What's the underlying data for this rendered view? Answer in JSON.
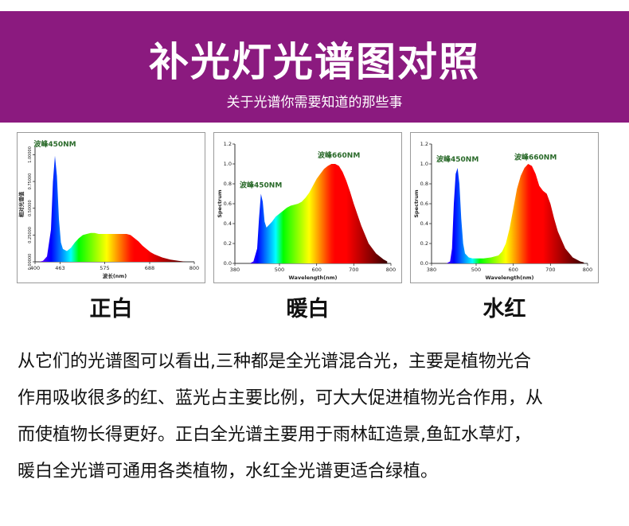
{
  "header": {
    "title": "补光灯光谱图对照",
    "subtitle": "关于光谱你需要知道的那些事",
    "background_color": "#8b1a7f"
  },
  "chart_data": [
    {
      "type": "area",
      "caption": "正白",
      "annotations": [
        "波峰450NM"
      ],
      "xlabel": "波长(nm)",
      "ylabel": "相对光谱值",
      "x_ticks": [
        "400",
        "463",
        "575",
        "688",
        "800"
      ],
      "y_ticks": [
        "0.00000",
        "0.25000",
        "0.50000",
        "0.75000",
        "1.00000"
      ],
      "xlim": [
        400,
        800
      ],
      "ylim": [
        0,
        1.07
      ],
      "grid": false,
      "x": [
        410,
        420,
        430,
        440,
        445,
        450,
        455,
        460,
        465,
        470,
        480,
        490,
        500,
        510,
        520,
        530,
        540,
        550,
        560,
        570,
        580,
        590,
        600,
        610,
        620,
        630,
        640,
        650,
        660,
        670,
        680,
        690,
        700,
        720,
        740,
        760,
        780
      ],
      "y": [
        0.0,
        0.01,
        0.05,
        0.3,
        0.75,
        0.99,
        0.8,
        0.4,
        0.18,
        0.12,
        0.1,
        0.13,
        0.18,
        0.22,
        0.25,
        0.26,
        0.27,
        0.27,
        0.26,
        0.26,
        0.26,
        0.26,
        0.26,
        0.26,
        0.26,
        0.26,
        0.25,
        0.22,
        0.19,
        0.15,
        0.12,
        0.09,
        0.07,
        0.04,
        0.02,
        0.01,
        0.0
      ]
    },
    {
      "type": "area",
      "caption": "暖白",
      "annotations": [
        "波峰450NM",
        "波峰660NM"
      ],
      "xlabel": "Wavelength(nm)",
      "ylabel": "Spectrum",
      "x_ticks": [
        "380",
        "500",
        "600",
        "700",
        "800"
      ],
      "y_ticks": [
        "0.0",
        "0.2",
        "0.4",
        "0.6",
        "0.8",
        "1.0",
        "1.2"
      ],
      "xlim": [
        380,
        800
      ],
      "ylim": [
        0,
        1.2
      ],
      "grid": false,
      "x": [
        420,
        430,
        440,
        445,
        450,
        455,
        460,
        465,
        470,
        480,
        490,
        500,
        510,
        520,
        530,
        540,
        550,
        560,
        570,
        580,
        590,
        600,
        610,
        620,
        630,
        640,
        650,
        660,
        670,
        680,
        690,
        700,
        720,
        740,
        760,
        780,
        790
      ],
      "y": [
        0.0,
        0.02,
        0.15,
        0.45,
        0.7,
        0.62,
        0.42,
        0.36,
        0.38,
        0.42,
        0.47,
        0.5,
        0.53,
        0.56,
        0.58,
        0.59,
        0.6,
        0.62,
        0.66,
        0.71,
        0.78,
        0.85,
        0.9,
        0.95,
        0.98,
        1.0,
        1.0,
        0.98,
        0.92,
        0.83,
        0.72,
        0.6,
        0.38,
        0.2,
        0.1,
        0.04,
        0.02
      ]
    },
    {
      "type": "area",
      "caption": "水红",
      "annotations": [
        "波峰450NM",
        "波峰660NM"
      ],
      "xlabel": "Wavelength(nm)",
      "ylabel": "Spectrum",
      "x_ticks": [
        "380",
        "500",
        "600",
        "700",
        "800"
      ],
      "y_ticks": [
        "0.0",
        "0.2",
        "0.4",
        "0.6",
        "0.8",
        "1.0",
        "1.2"
      ],
      "xlim": [
        380,
        800
      ],
      "ylim": [
        0,
        1.2
      ],
      "grid": false,
      "x": [
        420,
        430,
        435,
        440,
        445,
        450,
        455,
        460,
        465,
        470,
        480,
        490,
        500,
        520,
        540,
        560,
        570,
        580,
        590,
        600,
        610,
        620,
        630,
        640,
        650,
        660,
        670,
        680,
        690,
        700,
        710,
        720,
        740,
        760,
        780,
        790
      ],
      "y": [
        0.0,
        0.02,
        0.15,
        0.6,
        0.9,
        0.96,
        0.8,
        0.45,
        0.2,
        0.1,
        0.06,
        0.05,
        0.05,
        0.05,
        0.06,
        0.08,
        0.12,
        0.2,
        0.35,
        0.55,
        0.75,
        0.88,
        0.96,
        1.0,
        0.98,
        0.9,
        0.78,
        0.73,
        0.7,
        0.6,
        0.45,
        0.32,
        0.15,
        0.06,
        0.02,
        0.01
      ]
    }
  ],
  "description": {
    "lines": [
      "从它们的光谱图可以看出,三种都是全光谱混合光，主要是植物光合",
      "作用吸收很多的红、蓝光占主要比例，可大大促进植物光合作用，从",
      "而使植物长得更好。正白全光谱主要用于雨林缸造景,鱼缸水草灯，",
      "暖白全光谱可通用各类植物，水红全光谱更适合绿植。"
    ]
  }
}
